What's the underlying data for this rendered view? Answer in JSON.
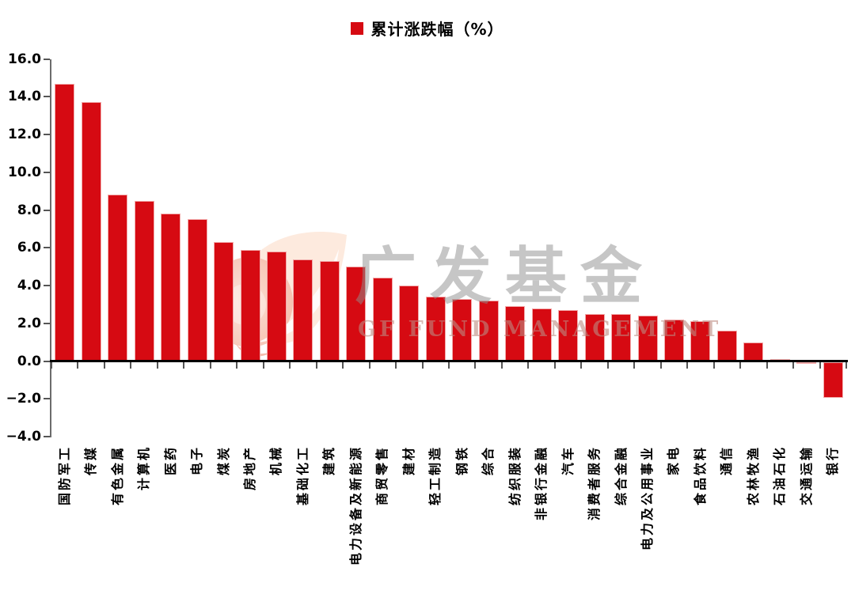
{
  "chart_data": {
    "type": "bar",
    "title": "",
    "legend_label": "累计涨跌幅（%）",
    "legend_position": "top-center",
    "grid": false,
    "categories": [
      "国防军工",
      "传媒",
      "有色金属",
      "计算机",
      "医药",
      "电子",
      "煤炭",
      "房地产",
      "机械",
      "基础化工",
      "建筑",
      "电力设备及新能源",
      "商贸零售",
      "建材",
      "轻工制造",
      "钢铁",
      "综合",
      "纺织服装",
      "非银行金融",
      "汽车",
      "消费者服务",
      "综合金融",
      "电力及公用事业",
      "家电",
      "食品饮料",
      "通信",
      "农林牧渔",
      "石油石化",
      "交通运输",
      "银行"
    ],
    "values": [
      14.7,
      13.7,
      8.8,
      8.5,
      7.8,
      7.5,
      6.3,
      5.9,
      5.8,
      5.4,
      5.3,
      5.0,
      4.4,
      4.0,
      3.4,
      3.3,
      3.2,
      2.9,
      2.8,
      2.7,
      2.5,
      2.5,
      2.4,
      2.2,
      2.1,
      1.6,
      1.0,
      0.1,
      -0.1,
      -1.9
    ],
    "xlabel": "",
    "ylabel": "",
    "ylim": [
      -4.0,
      16.0
    ],
    "ytick_step": 2.0,
    "y_tick_labels": [
      "16.0",
      "14.0",
      "12.0",
      "10.0",
      "8.0",
      "6.0",
      "4.0",
      "2.0",
      "0.0",
      "−2.0",
      "−4.0"
    ],
    "bar_color": "#d60a12",
    "bar_border_color": "#f2abab",
    "axis_color": "#6b6b6b",
    "zero_line_color": "#000000",
    "label_color": "#000000"
  },
  "watermark": {
    "cn_text": "广发基金",
    "en_text": "GF FUND MANAGEMENT",
    "cn_color": "#8f8f8f",
    "en_color": "#bd8b82",
    "logo_icon": "gf-leaf-logo"
  }
}
